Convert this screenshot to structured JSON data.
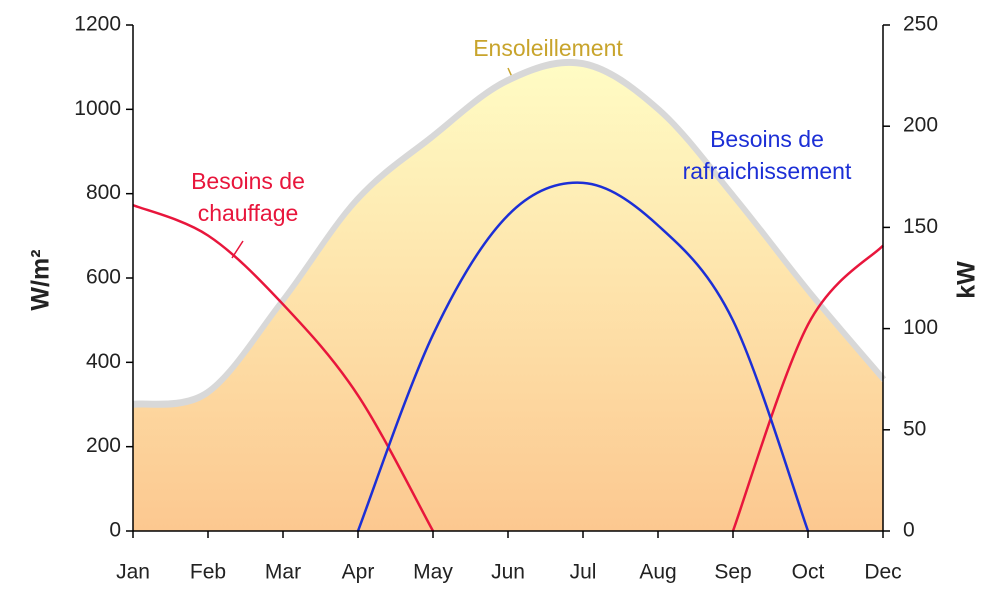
{
  "chart_data": {
    "type": "line",
    "ylabel": "W/m²",
    "y2label": "kW",
    "categories": [
      "Jan",
      "Feb",
      "Mar",
      "Apr",
      "May",
      "Jun",
      "Jul",
      "Aug",
      "Sep",
      "Oct",
      "Dec"
    ],
    "ylim": [
      0,
      1200
    ],
    "yticks": [
      0,
      200,
      400,
      600,
      800,
      1000,
      1200
    ],
    "y2lim": [
      0,
      250
    ],
    "y2ticks": [
      0,
      50,
      100,
      150,
      200,
      250
    ],
    "series": [
      {
        "name": "Ensoleillement",
        "type": "area",
        "color": "#c8a42c",
        "axis": "y",
        "values": [
          292,
          320,
          536,
          778,
          927,
          1060,
          1100,
          991,
          785,
          560,
          351
        ]
      },
      {
        "name": "Besoins de chauffage",
        "type": "line",
        "color": "#e8163c",
        "axis": "y2",
        "values": [
          161,
          146,
          112,
          67,
          0,
          null,
          null,
          null,
          0,
          102,
          141
        ]
      },
      {
        "name": "Besoins de rafraichissement",
        "type": "line",
        "color": "#1c2fd6",
        "axis": "y2",
        "values": [
          null,
          null,
          null,
          0,
          97,
          156,
          172,
          151,
          104,
          0,
          null
        ]
      }
    ]
  }
}
